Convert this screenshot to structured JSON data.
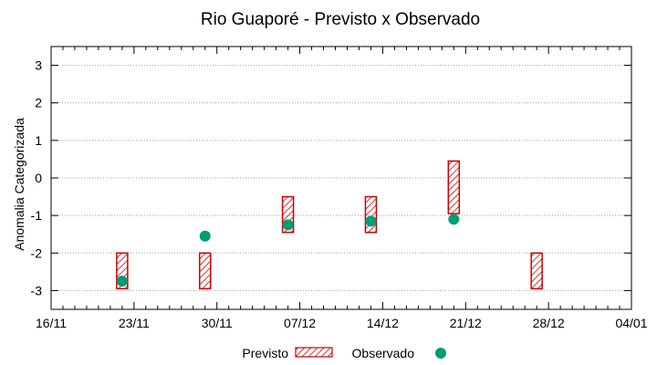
{
  "chart_data": {
    "type": "range-and-scatter",
    "title": "Rio Guaporé - Previsto x Observado",
    "xlabel": "",
    "ylabel": "Anomalia Categorizada",
    "x_ticks": [
      "16/11",
      "23/11",
      "30/11",
      "07/12",
      "14/12",
      "21/12",
      "28/12",
      "04/01"
    ],
    "x_range_days": [
      0,
      49
    ],
    "y_ticks": [
      "-3",
      "-2",
      "-1",
      "0",
      "1",
      "2",
      "3"
    ],
    "ylim": [
      -3.5,
      3.5
    ],
    "grid": "horizontal dotted",
    "legend_placement": "bottom",
    "series": [
      {
        "name": "Previsto",
        "style": "hatched range bar",
        "color": "#cc0000",
        "points": [
          {
            "date": "22/11",
            "low": -2.95,
            "high": -2.0
          },
          {
            "date": "29/11",
            "low": -2.95,
            "high": -2.0
          },
          {
            "date": "06/12",
            "low": -1.45,
            "high": -0.5
          },
          {
            "date": "13/12",
            "low": -1.45,
            "high": -0.5
          },
          {
            "date": "20/12",
            "low": -0.95,
            "high": 0.45
          },
          {
            "date": "27/12",
            "low": -2.95,
            "high": -2.0
          }
        ]
      },
      {
        "name": "Observado",
        "style": "filled circle",
        "color": "#009e73",
        "points": [
          {
            "date": "22/11",
            "value": -2.75
          },
          {
            "date": "29/11",
            "value": -1.55
          },
          {
            "date": "06/12",
            "value": -1.25
          },
          {
            "date": "13/12",
            "value": -1.15
          },
          {
            "date": "20/12",
            "value": -1.1
          }
        ]
      }
    ]
  }
}
